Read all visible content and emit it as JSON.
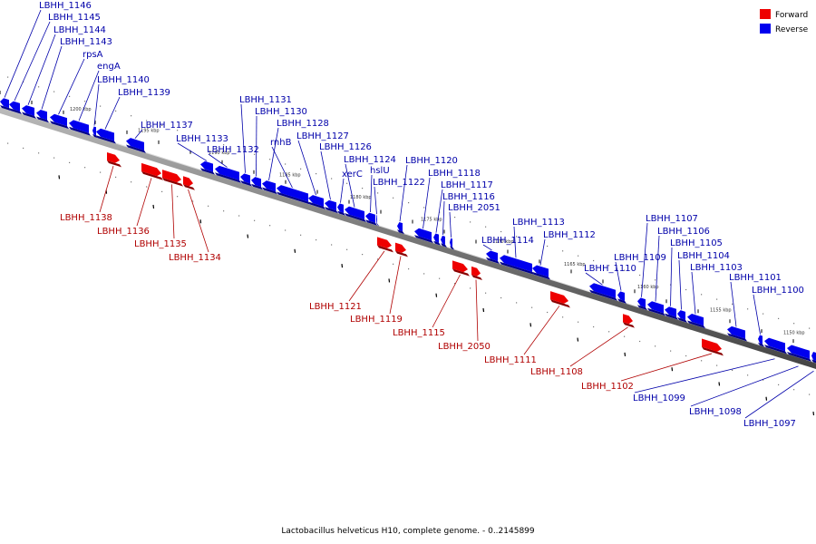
{
  "colors": {
    "forward": "#ee0000",
    "reverse": "#0000ee",
    "forward_label": "#b00000",
    "reverse_label": "#0000aa",
    "backbone": "#888888"
  },
  "legend": {
    "forward": "Forward",
    "reverse": "Reverse"
  },
  "caption": "Lactobacillus helveticus H10, complete genome. - 0..2145899",
  "scale_marks": [
    "1200 kbp",
    "1195 kbp",
    "1190 kbp",
    "1185 kbp",
    "1180 kbp",
    "1175 kbp",
    "1170 kbp",
    "1165 kbp",
    "1160 kbp",
    "1155 kbp",
    "1150 kbp"
  ],
  "reverse_genes": [
    "LBHH_1146",
    "LBHH_1145",
    "LBHH_1144",
    "LBHH_1143",
    "rpsA",
    "engA",
    "LBHH_1140",
    "LBHH_1139",
    "LBHH_1137",
    "LBHH_1133",
    "LBHH_1132",
    "LBHH_1131",
    "LBHH_1130",
    "LBHH_1128",
    "rnhB",
    "LBHH_1127",
    "LBHH_1126",
    "xerC",
    "LBHH_1124",
    "hslU",
    "LBHH_1122",
    "LBHH_1120",
    "LBHH_1118",
    "LBHH_1117",
    "LBHH_1116",
    "LBHH_2051",
    "LBHH_1114",
    "LBHH_1113",
    "LBHH_1112",
    "LBHH_1110",
    "LBHH_1109",
    "LBHH_1107",
    "LBHH_1106",
    "LBHH_1105",
    "LBHH_1104",
    "LBHH_1103",
    "LBHH_1101",
    "LBHH_1100",
    "LBHH_1099",
    "LBHH_1098",
    "LBHH_1097"
  ],
  "forward_genes": [
    "LBHH_1138",
    "LBHH_1136",
    "LBHH_1135",
    "LBHH_1134",
    "LBHH_1121",
    "LBHH_1119",
    "LBHH_1115",
    "LBHH_2050",
    "LBHH_1111",
    "LBHH_1108",
    "LBHH_1102"
  ]
}
